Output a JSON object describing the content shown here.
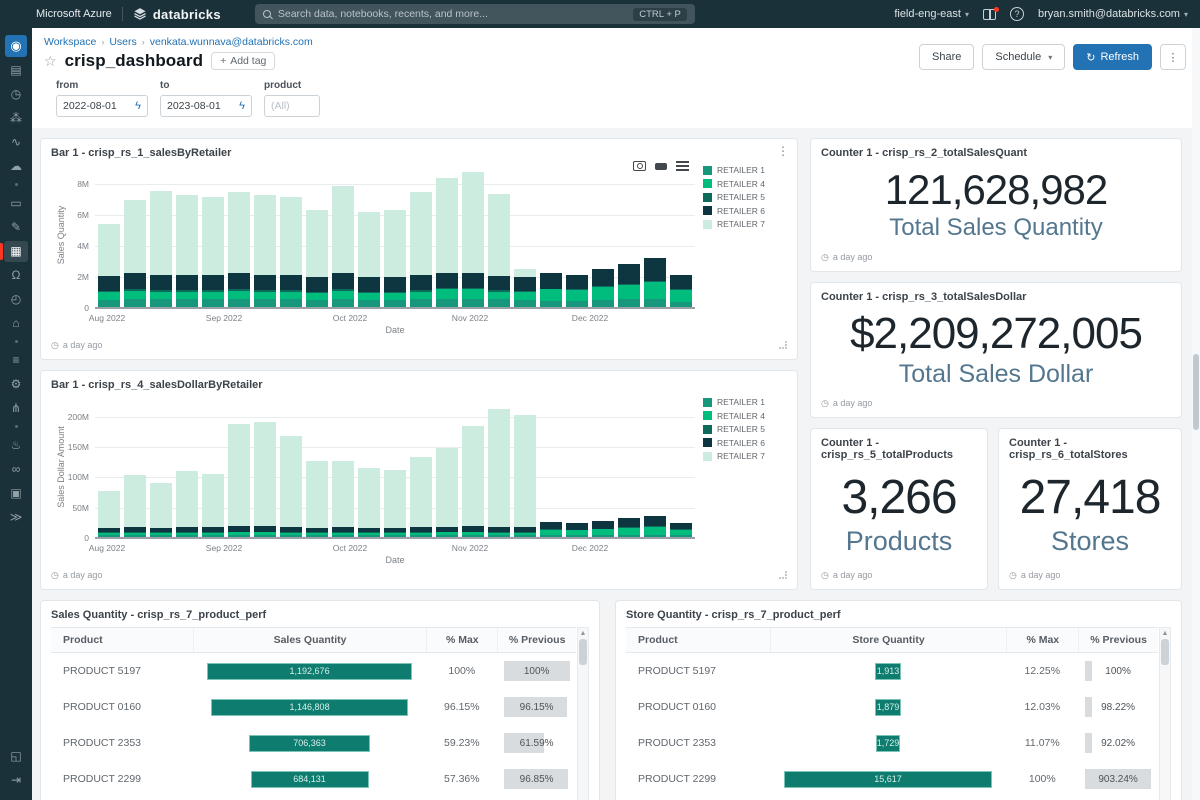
{
  "topbar": {
    "azure": "Microsoft Azure",
    "brand": "databricks",
    "search_placeholder": "Search data, notebooks, recents, and more...",
    "search_shortcut": "CTRL + P",
    "workspace": "field-eng-east",
    "user": "bryan.smith@databricks.com"
  },
  "sidebar": {
    "items": [
      {
        "name": "sidebar-item-new",
        "glyph": "◉",
        "variant": "primary"
      },
      {
        "name": "sidebar-item-workspace",
        "glyph": "▤"
      },
      {
        "name": "sidebar-item-recents",
        "glyph": "◷"
      },
      {
        "name": "sidebar-item-catalog",
        "glyph": "⁂"
      },
      {
        "name": "sidebar-item-workflows",
        "glyph": "∿"
      },
      {
        "name": "sidebar-item-compute",
        "glyph": "☁"
      },
      {
        "sep": true
      },
      {
        "name": "sidebar-item-sql-editor",
        "glyph": "▭"
      },
      {
        "name": "sidebar-item-queries",
        "glyph": "✎"
      },
      {
        "name": "sidebar-item-dashboards",
        "glyph": "▦",
        "variant": "active"
      },
      {
        "name": "sidebar-item-alerts",
        "glyph": "Ω"
      },
      {
        "name": "sidebar-item-query-history",
        "glyph": "◴"
      },
      {
        "name": "sidebar-item-sql-warehouses",
        "glyph": "⌂"
      },
      {
        "sep": true
      },
      {
        "name": "sidebar-item-job-runs",
        "glyph": "≡"
      },
      {
        "name": "sidebar-item-data-ingestion",
        "glyph": "⚙"
      },
      {
        "name": "sidebar-item-delta-live-tables",
        "glyph": "⋔"
      },
      {
        "sep": true
      },
      {
        "name": "sidebar-item-experiments",
        "glyph": "♨"
      },
      {
        "name": "sidebar-item-feature-store",
        "glyph": "∞"
      },
      {
        "name": "sidebar-item-models",
        "glyph": "▣"
      },
      {
        "name": "sidebar-item-serving",
        "glyph": "≫"
      }
    ],
    "bottom_items": [
      {
        "name": "sidebar-item-expand",
        "glyph": "◱"
      },
      {
        "name": "sidebar-item-exit",
        "glyph": "⇥"
      }
    ]
  },
  "breadcrumb": [
    "Workspace",
    "Users",
    "venkata.wunnava@databricks.com"
  ],
  "header": {
    "title": "crisp_dashboard",
    "add_tag_label": "Add tag",
    "share_label": "Share",
    "schedule_label": "Schedule",
    "refresh_label": "Refresh"
  },
  "filters": {
    "from": {
      "label": "from",
      "value": "2022-08-01"
    },
    "to": {
      "label": "to",
      "value": "2023-08-01"
    },
    "product": {
      "label": "product",
      "value": "(All)"
    }
  },
  "counters": [
    {
      "title": "Counter 1 - crisp_rs_2_totalSalesQuant",
      "value": "121,628,982",
      "label": "Total Sales Quantity",
      "updated": "a day ago"
    },
    {
      "title": "Counter 1 - crisp_rs_3_totalSalesDollar",
      "value": "$2,209,272,005",
      "label": "Total Sales Dollar",
      "updated": "a day ago"
    },
    {
      "title": "Counter 1 - crisp_rs_5_totalProducts",
      "value": "3,266",
      "label": "Products",
      "updated": "a day ago"
    },
    {
      "title": "Counter 1 - crisp_rs_6_totalStores",
      "value": "27,418",
      "label": "Stores",
      "updated": "a day ago"
    }
  ],
  "chart_data": [
    {
      "type": "bar",
      "stacked": true,
      "title": "Bar 1 - crisp_rs_1_salesByRetailer",
      "ylabel": "Sales Quantity",
      "xlabel": "Date",
      "unit": "millions",
      "updated": "a day ago",
      "legend_position": "right",
      "yticks": [
        "0",
        "2M",
        "4M",
        "6M",
        "8M"
      ],
      "ytick_values": [
        0,
        2,
        4,
        6,
        8
      ],
      "ymax_display": 9,
      "xticks": [
        {
          "label": "Aug 2022",
          "pos": 2
        },
        {
          "label": "Sep 2022",
          "pos": 21.5
        },
        {
          "label": "Oct 2022",
          "pos": 42.5
        },
        {
          "label": "Nov 2022",
          "pos": 62.5
        },
        {
          "label": "Dec 2022",
          "pos": 82.5
        }
      ],
      "series": [
        {
          "name": "RETAILER 1",
          "color": "#17987c",
          "values": [
            0.45,
            0.5,
            0.5,
            0.5,
            0.5,
            0.5,
            0.5,
            0.5,
            0.45,
            0.5,
            0.45,
            0.45,
            0.5,
            0.55,
            0.55,
            0.5,
            0.45,
            0.4,
            0.4,
            0.45,
            0.5,
            0.55,
            0.35
          ]
        },
        {
          "name": "RETAILER 4",
          "color": "#00bd7d",
          "values": [
            0.5,
            0.55,
            0.5,
            0.5,
            0.5,
            0.55,
            0.5,
            0.5,
            0.45,
            0.55,
            0.45,
            0.45,
            0.5,
            0.6,
            0.6,
            0.5,
            0.5,
            0.75,
            0.7,
            0.85,
            0.95,
            1.1,
            0.75
          ]
        },
        {
          "name": "RETAILER 5",
          "color": "#0e6a5a",
          "values": [
            0.1,
            0.1,
            0.1,
            0.1,
            0.1,
            0.1,
            0.1,
            0.1,
            0.1,
            0.1,
            0.1,
            0.1,
            0.1,
            0.1,
            0.1,
            0.1,
            0.08,
            0.05,
            0.05,
            0.05,
            0.05,
            0.05,
            0.05
          ]
        },
        {
          "name": "RETAILER 6",
          "color": "#0d3640",
          "values": [
            1.0,
            1.05,
            1.0,
            1.0,
            1.0,
            1.05,
            1.0,
            1.0,
            0.95,
            1.05,
            0.95,
            0.95,
            1.0,
            1.0,
            1.0,
            0.95,
            0.9,
            1.0,
            0.95,
            1.15,
            1.3,
            1.5,
            0.95
          ]
        },
        {
          "name": "RETAILER 7",
          "color": "#cdece0",
          "values": [
            3.35,
            4.8,
            5.5,
            5.2,
            5.1,
            5.3,
            5.2,
            5.1,
            4.35,
            5.7,
            4.25,
            4.35,
            5.4,
            6.15,
            6.55,
            5.35,
            0.55,
            0,
            0,
            0,
            0,
            0,
            0
          ]
        }
      ]
    },
    {
      "type": "bar",
      "stacked": true,
      "title": "Bar 1 - crisp_rs_4_salesDollarByRetailer",
      "ylabel": "Sales Dollar Amount",
      "xlabel": "Date",
      "unit": "millions USD",
      "updated": "a day ago",
      "legend_position": "right",
      "yticks": [
        "0",
        "50M",
        "100M",
        "150M",
        "200M"
      ],
      "ytick_values": [
        0,
        50,
        100,
        150,
        200
      ],
      "ymax_display": 228,
      "xticks": [
        {
          "label": "Aug 2022",
          "pos": 2
        },
        {
          "label": "Sep 2022",
          "pos": 21.5
        },
        {
          "label": "Oct 2022",
          "pos": 42.5
        },
        {
          "label": "Nov 2022",
          "pos": 62.5
        },
        {
          "label": "Dec 2022",
          "pos": 82.5
        }
      ],
      "series": [
        {
          "name": "RETAILER 1",
          "color": "#17987c",
          "values": [
            3,
            3,
            3,
            3,
            3,
            3,
            3,
            3,
            3,
            3,
            3,
            3,
            3,
            3,
            3,
            3,
            3,
            3,
            3,
            3,
            4,
            4,
            3
          ]
        },
        {
          "name": "RETAILER 4",
          "color": "#00bd7d",
          "values": [
            4,
            4,
            4,
            4,
            4,
            5,
            5,
            4,
            4,
            4,
            4,
            4,
            4,
            5,
            5,
            4,
            4,
            9,
            8,
            10,
            11,
            13,
            9
          ]
        },
        {
          "name": "RETAILER 5",
          "color": "#0e6a5a",
          "values": [
            1,
            1,
            1,
            1,
            1,
            1,
            1,
            1,
            1,
            1,
            1,
            1,
            1,
            1,
            1,
            1,
            1,
            1,
            1,
            1,
            1,
            1,
            1
          ]
        },
        {
          "name": "RETAILER 6",
          "color": "#0d3640",
          "values": [
            7,
            8,
            7,
            8,
            8,
            9,
            9,
            8,
            7,
            8,
            7,
            7,
            8,
            8,
            9,
            8,
            8,
            12,
            11,
            13,
            16,
            18,
            11
          ]
        },
        {
          "name": "RETAILER 7",
          "color": "#cdece0",
          "values": [
            63,
            88,
            75,
            94,
            89,
            172,
            175,
            154,
            113,
            111,
            100,
            98,
            119,
            133,
            169,
            199,
            189,
            0,
            0,
            0,
            0,
            0,
            0
          ]
        }
      ]
    },
    {
      "type": "table",
      "title": "Sales Quantity - crisp_rs_7_product_perf",
      "columns": [
        "Product",
        "Sales Quantity",
        "% Max",
        "% Previous"
      ],
      "rows": [
        {
          "product": "PRODUCT 5197",
          "value": "1,192,676",
          "value_num": 1192676,
          "pct_max": 100,
          "pct_max_label": "100%",
          "pct_prev": 100,
          "pct_prev_label": "100%"
        },
        {
          "product": "PRODUCT 0160",
          "value": "1,146,808",
          "value_num": 1146808,
          "pct_max": 96.15,
          "pct_max_label": "96.15%",
          "pct_prev": 96.15,
          "pct_prev_label": "96.15%"
        },
        {
          "product": "PRODUCT 2353",
          "value": "706,363",
          "value_num": 706363,
          "pct_max": 59.23,
          "pct_max_label": "59.23%",
          "pct_prev": 61.59,
          "pct_prev_label": "61.59%"
        },
        {
          "product": "PRODUCT 2299",
          "value": "684,131",
          "value_num": 684131,
          "pct_max": 57.36,
          "pct_max_label": "57.36%",
          "pct_prev": 96.85,
          "pct_prev_label": "96.85%"
        }
      ]
    },
    {
      "type": "table",
      "title": "Store Quantity - crisp_rs_7_product_perf",
      "columns": [
        "Product",
        "Store Quantity",
        "% Max",
        "% Previous"
      ],
      "rows": [
        {
          "product": "PRODUCT 5197",
          "value": "1,913",
          "value_num": 1913,
          "pct_max": 12.25,
          "pct_max_label": "12.25%",
          "pct_prev": 100,
          "pct_prev_label": "100%"
        },
        {
          "product": "PRODUCT 0160",
          "value": "1,879",
          "value_num": 1879,
          "pct_max": 12.03,
          "pct_max_label": "12.03%",
          "pct_prev": 98.22,
          "pct_prev_label": "98.22%"
        },
        {
          "product": "PRODUCT 2353",
          "value": "1,729",
          "value_num": 1729,
          "pct_max": 11.07,
          "pct_max_label": "11.07%",
          "pct_prev": 92.02,
          "pct_prev_label": "92.02%"
        },
        {
          "product": "PRODUCT 2299",
          "value": "15,617",
          "value_num": 15617,
          "pct_max": 100,
          "pct_max_label": "100%",
          "pct_prev": 903.24,
          "pct_prev_label": "903.24%"
        }
      ]
    }
  ],
  "colors": {
    "topbar_bg": "#1b3139",
    "accent_blue": "#2272b4",
    "brand_red": "#ff3621",
    "retailer_1": "#17987c",
    "retailer_4": "#00bd7d",
    "retailer_5": "#0e6a5a",
    "retailer_6": "#0d3640",
    "retailer_7": "#cdece0",
    "table_bar_teal": "#0e7c6f",
    "counter_label": "#54778f"
  }
}
